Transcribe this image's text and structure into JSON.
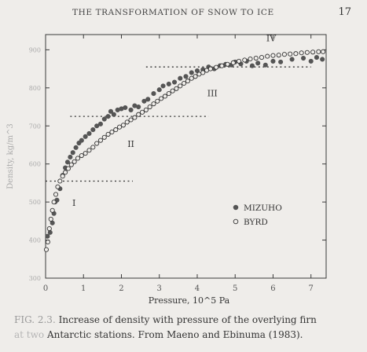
{
  "header": {
    "running_title": "THE TRANSFORMATION OF SNOW TO ICE",
    "page_number": "17"
  },
  "caption": {
    "label": "FIG. 2.3.",
    "text_line1": "Increase of density with pressure of the overlying firn",
    "faded_words": "at two",
    "text_line2": "Antarctic stations. From Maeno and Ebinuma (1983)."
  },
  "chart_data": {
    "type": "scatter",
    "xlabel": "Pressure, 10^5 Pa",
    "ylabel": "Density, kg/m^3",
    "xlim": [
      0,
      7.4
    ],
    "ylim": [
      300,
      940
    ],
    "xticks": [
      0,
      1,
      2,
      3,
      4,
      5,
      6,
      7
    ],
    "yticks": [
      300,
      400,
      500,
      600,
      700,
      800,
      900
    ],
    "grid": false,
    "legend_position": "center-right",
    "region_labels": [
      {
        "text": "I",
        "x": 0.75,
        "y": 490
      },
      {
        "text": "II",
        "x": 2.25,
        "y": 645
      },
      {
        "text": "III",
        "x": 4.4,
        "y": 778
      },
      {
        "text": "IV",
        "x": 5.95,
        "y": 922
      }
    ],
    "boundary_lines": [
      {
        "y": 555,
        "x_start": 0.0,
        "x_end": 2.3
      },
      {
        "y": 725,
        "x_start": 0.65,
        "x_end": 4.3
      },
      {
        "y": 855,
        "x_start": 2.65,
        "x_end": 7.0
      }
    ],
    "series": [
      {
        "name": "MIZUHO",
        "marker": "filled-circle",
        "points": [
          [
            0.05,
            410
          ],
          [
            0.12,
            420
          ],
          [
            0.18,
            445
          ],
          [
            0.22,
            470
          ],
          [
            0.25,
            500
          ],
          [
            0.3,
            505
          ],
          [
            0.38,
            535
          ],
          [
            0.45,
            570
          ],
          [
            0.52,
            590
          ],
          [
            0.58,
            605
          ],
          [
            0.65,
            618
          ],
          [
            0.72,
            630
          ],
          [
            0.8,
            643
          ],
          [
            0.88,
            655
          ],
          [
            0.95,
            662
          ],
          [
            1.05,
            672
          ],
          [
            1.15,
            680
          ],
          [
            1.25,
            690
          ],
          [
            1.35,
            700
          ],
          [
            1.45,
            705
          ],
          [
            1.55,
            718
          ],
          [
            1.65,
            725
          ],
          [
            1.72,
            738
          ],
          [
            1.8,
            730
          ],
          [
            1.9,
            742
          ],
          [
            2.0,
            745
          ],
          [
            2.1,
            748
          ],
          [
            2.25,
            742
          ],
          [
            2.35,
            753
          ],
          [
            2.45,
            750
          ],
          [
            2.6,
            765
          ],
          [
            2.7,
            770
          ],
          [
            2.85,
            785
          ],
          [
            3.0,
            795
          ],
          [
            3.1,
            805
          ],
          [
            3.25,
            810
          ],
          [
            3.4,
            815
          ],
          [
            3.55,
            825
          ],
          [
            3.7,
            830
          ],
          [
            3.85,
            840
          ],
          [
            4.0,
            845
          ],
          [
            4.15,
            848
          ],
          [
            4.3,
            855
          ],
          [
            4.45,
            850
          ],
          [
            4.6,
            858
          ],
          [
            4.75,
            862
          ],
          [
            4.9,
            860
          ],
          [
            5.0,
            868
          ],
          [
            5.15,
            863
          ],
          [
            5.3,
            870
          ],
          [
            5.45,
            858
          ],
          [
            5.6,
            865
          ],
          [
            5.8,
            860
          ],
          [
            6.0,
            870
          ],
          [
            6.2,
            868
          ],
          [
            6.5,
            875
          ],
          [
            6.8,
            878
          ],
          [
            7.0,
            870
          ],
          [
            7.15,
            880
          ],
          [
            7.3,
            875
          ]
        ]
      },
      {
        "name": "BYRD",
        "marker": "open-circle",
        "points": [
          [
            0.02,
            375
          ],
          [
            0.06,
            395
          ],
          [
            0.1,
            430
          ],
          [
            0.14,
            455
          ],
          [
            0.18,
            478
          ],
          [
            0.22,
            500
          ],
          [
            0.27,
            520
          ],
          [
            0.32,
            540
          ],
          [
            0.38,
            555
          ],
          [
            0.45,
            568
          ],
          [
            0.52,
            578
          ],
          [
            0.6,
            588
          ],
          [
            0.68,
            598
          ],
          [
            0.76,
            606
          ],
          [
            0.85,
            615
          ],
          [
            0.95,
            622
          ],
          [
            1.05,
            628
          ],
          [
            1.15,
            636
          ],
          [
            1.25,
            644
          ],
          [
            1.35,
            654
          ],
          [
            1.45,
            662
          ],
          [
            1.55,
            670
          ],
          [
            1.65,
            678
          ],
          [
            1.75,
            684
          ],
          [
            1.85,
            690
          ],
          [
            1.95,
            697
          ],
          [
            2.05,
            702
          ],
          [
            2.15,
            710
          ],
          [
            2.25,
            716
          ],
          [
            2.35,
            722
          ],
          [
            2.45,
            730
          ],
          [
            2.55,
            736
          ],
          [
            2.65,
            742
          ],
          [
            2.75,
            750
          ],
          [
            2.85,
            758
          ],
          [
            2.95,
            765
          ],
          [
            3.05,
            772
          ],
          [
            3.15,
            778
          ],
          [
            3.25,
            785
          ],
          [
            3.35,
            792
          ],
          [
            3.45,
            798
          ],
          [
            3.55,
            805
          ],
          [
            3.65,
            812
          ],
          [
            3.75,
            818
          ],
          [
            3.85,
            825
          ],
          [
            3.95,
            830
          ],
          [
            4.05,
            836
          ],
          [
            4.15,
            840
          ],
          [
            4.25,
            846
          ],
          [
            4.35,
            850
          ],
          [
            4.5,
            854
          ],
          [
            4.65,
            858
          ],
          [
            4.8,
            862
          ],
          [
            4.95,
            866
          ],
          [
            5.1,
            870
          ],
          [
            5.25,
            873
          ],
          [
            5.4,
            876
          ],
          [
            5.55,
            878
          ],
          [
            5.7,
            880
          ],
          [
            5.85,
            883
          ],
          [
            6.0,
            885
          ],
          [
            6.15,
            886
          ],
          [
            6.3,
            888
          ],
          [
            6.45,
            889
          ],
          [
            6.6,
            890
          ],
          [
            6.75,
            892
          ],
          [
            6.9,
            893
          ],
          [
            7.05,
            894
          ],
          [
            7.2,
            895
          ],
          [
            7.32,
            895
          ]
        ]
      }
    ]
  }
}
